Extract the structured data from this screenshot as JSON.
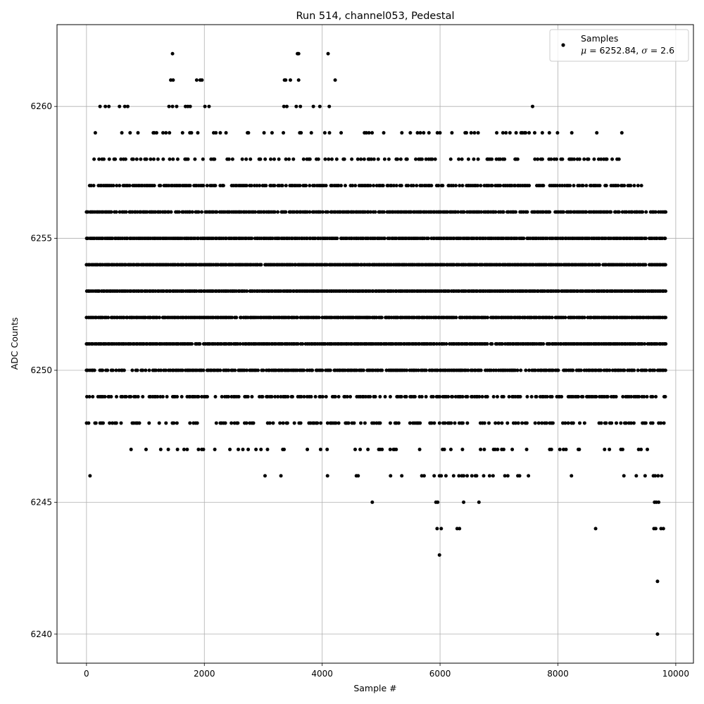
{
  "chart_data": {
    "type": "scatter",
    "title": "Run 514, channel053, Pedestal",
    "xlabel": "Sample #",
    "ylabel": "ADC Counts",
    "xlim": [
      -500,
      10300
    ],
    "ylim": [
      6238.9,
      6263.1
    ],
    "xticks": [
      0,
      2000,
      4000,
      6000,
      8000,
      10000
    ],
    "yticks": [
      6240,
      6245,
      6250,
      6255,
      6260
    ],
    "grid": true,
    "legend_position": "top-right",
    "marker_color": "#000000",
    "series": [
      {
        "name": "Samples",
        "legend_stats": {
          "mu": "6252.84",
          "sigma": "2.6"
        },
        "n_samples": 9830,
        "dense_levels": [
          {
            "y": 6250,
            "ranges": [
              [
                0,
                9830
              ]
            ]
          },
          {
            "y": 6251,
            "ranges": [
              [
                0,
                9830
              ]
            ]
          },
          {
            "y": 6252,
            "ranges": [
              [
                0,
                9830
              ]
            ]
          },
          {
            "y": 6253,
            "ranges": [
              [
                0,
                9830
              ]
            ]
          },
          {
            "y": 6254,
            "ranges": [
              [
                0,
                9830
              ]
            ]
          },
          {
            "y": 6255,
            "ranges": [
              [
                0,
                9830
              ]
            ]
          },
          {
            "y": 6256,
            "ranges": [
              [
                0,
                9830
              ]
            ]
          },
          {
            "y": 6257,
            "ranges": [
              [
                30,
                9420
              ]
            ]
          },
          {
            "y": 6249,
            "ranges": [
              [
                0,
                9830
              ]
            ]
          },
          {
            "y": 6248,
            "ranges": [
              [
                0,
                9800
              ]
            ]
          },
          {
            "y": 6258,
            "ranges": [
              [
                100,
                9050
              ]
            ]
          },
          {
            "y": 6247,
            "ranges": [
              [
                500,
                9800
              ]
            ]
          },
          {
            "y": 6259,
            "ranges": [
              [
                150,
                9130
              ]
            ]
          },
          {
            "y": 6246,
            "ranges": [
              [
                5700,
                9800
              ]
            ]
          }
        ],
        "points": [
          [
            60,
            6246
          ],
          [
            3030,
            6246
          ],
          [
            3300,
            6246
          ],
          [
            4090,
            6246
          ],
          [
            4580,
            6246
          ],
          [
            4610,
            6246
          ],
          [
            5160,
            6246
          ],
          [
            5350,
            6246
          ],
          [
            5690,
            6246
          ],
          [
            5730,
            6246
          ],
          [
            5900,
            6246
          ],
          [
            5990,
            6246
          ],
          [
            6020,
            6246
          ],
          [
            6100,
            6246
          ],
          [
            6230,
            6246
          ],
          [
            6320,
            6246
          ],
          [
            6370,
            6246
          ],
          [
            6400,
            6246
          ],
          [
            6460,
            6246
          ],
          [
            6540,
            6246
          ],
          [
            6600,
            6246
          ],
          [
            6620,
            6246
          ],
          [
            6740,
            6246
          ],
          [
            6840,
            6246
          ],
          [
            6900,
            6246
          ],
          [
            7100,
            6246
          ],
          [
            7150,
            6246
          ],
          [
            7320,
            6246
          ],
          [
            7350,
            6246
          ],
          [
            7500,
            6246
          ],
          [
            8230,
            6246
          ],
          [
            9120,
            6246
          ],
          [
            9330,
            6246
          ],
          [
            9480,
            6246
          ],
          [
            9620,
            6246
          ],
          [
            9650,
            6246
          ],
          [
            9700,
            6246
          ],
          [
            9760,
            6246
          ],
          [
            4850,
            6245
          ],
          [
            5930,
            6245
          ],
          [
            5960,
            6245
          ],
          [
            6400,
            6245
          ],
          [
            6660,
            6245
          ],
          [
            9640,
            6245
          ],
          [
            9670,
            6245
          ],
          [
            9710,
            6245
          ],
          [
            5950,
            6244
          ],
          [
            6020,
            6244
          ],
          [
            6290,
            6244
          ],
          [
            6330,
            6244
          ],
          [
            8640,
            6244
          ],
          [
            9630,
            6244
          ],
          [
            9660,
            6244
          ],
          [
            9750,
            6244
          ],
          [
            9790,
            6244
          ],
          [
            5990,
            6243
          ],
          [
            9690,
            6242
          ],
          [
            9690,
            6240
          ],
          [
            230,
            6260
          ],
          [
            320,
            6260
          ],
          [
            380,
            6260
          ],
          [
            560,
            6260
          ],
          [
            650,
            6260
          ],
          [
            700,
            6260
          ],
          [
            1400,
            6260
          ],
          [
            1460,
            6260
          ],
          [
            1530,
            6260
          ],
          [
            1680,
            6260
          ],
          [
            1720,
            6260
          ],
          [
            1760,
            6260
          ],
          [
            2010,
            6260
          ],
          [
            2080,
            6260
          ],
          [
            3350,
            6260
          ],
          [
            3400,
            6260
          ],
          [
            3560,
            6260
          ],
          [
            3630,
            6260
          ],
          [
            3850,
            6260
          ],
          [
            3960,
            6260
          ],
          [
            4120,
            6260
          ],
          [
            7570,
            6260
          ],
          [
            1430,
            6261
          ],
          [
            1470,
            6261
          ],
          [
            1870,
            6261
          ],
          [
            1930,
            6261
          ],
          [
            1960,
            6261
          ],
          [
            3360,
            6261
          ],
          [
            3380,
            6261
          ],
          [
            3460,
            6261
          ],
          [
            3600,
            6261
          ],
          [
            4220,
            6261
          ],
          [
            1460,
            6262
          ],
          [
            3580,
            6262
          ],
          [
            3600,
            6262
          ],
          [
            4100,
            6262
          ]
        ]
      }
    ]
  }
}
